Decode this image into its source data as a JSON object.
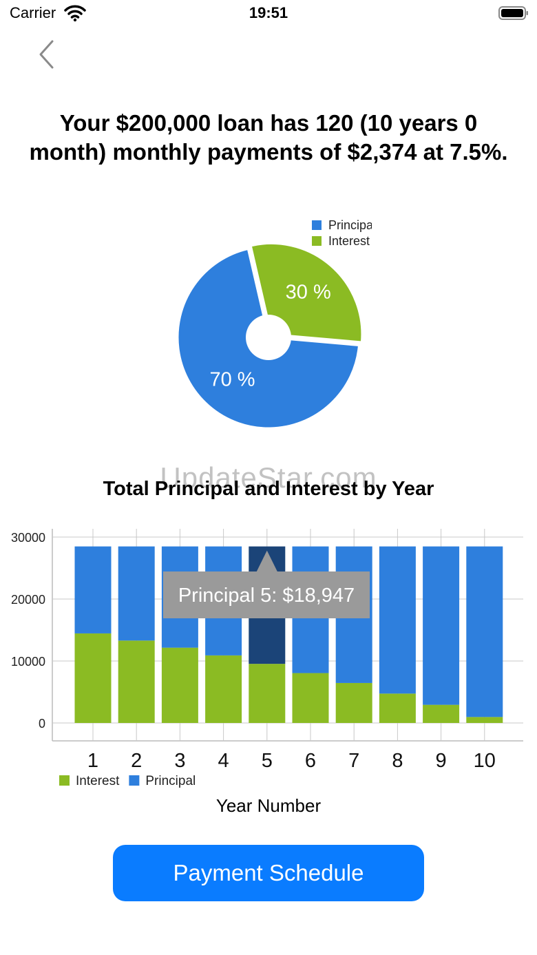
{
  "status_bar": {
    "carrier": "Carrier",
    "time": "19:51"
  },
  "headline": "Your $200,000 loan has 120 (10 years 0 month) monthly payments of $2,374 at 7.5%.",
  "watermark": "UpdateStar.com",
  "colors": {
    "principal": "#2e7fdd",
    "interest": "#8bbb23",
    "highlight": "#1b4478",
    "tooltip_bg": "#9a9a9a",
    "button": "#0a7cff"
  },
  "chart_data": [
    {
      "type": "pie",
      "title": "",
      "legend": [
        "Principal",
        "Interest"
      ],
      "legend_position": "top-right",
      "slices": [
        {
          "name": "Principal",
          "value": 70,
          "label": "70 %"
        },
        {
          "name": "Interest",
          "value": 30,
          "label": "30 %"
        }
      ],
      "donut": true
    },
    {
      "type": "bar",
      "stacked": true,
      "title": "Total Principal and Interest by Year",
      "xlabel": "Year Number",
      "ylabel": "",
      "categories": [
        "1",
        "2",
        "3",
        "4",
        "5",
        "6",
        "7",
        "8",
        "9",
        "10"
      ],
      "ylim": [
        0,
        30000
      ],
      "yticks": [
        "0",
        "10000",
        "20000",
        "30000"
      ],
      "grid": true,
      "legend_position": "bottom-left",
      "series": [
        {
          "name": "Interest",
          "values": [
            14450,
            13300,
            12150,
            10900,
            9540,
            8050,
            6450,
            4740,
            2930,
            960
          ]
        },
        {
          "name": "Principal",
          "values": [
            14038,
            15188,
            16338,
            17588,
            18947,
            20438,
            22038,
            23748,
            25558,
            27528
          ]
        }
      ],
      "highlight": {
        "category_index": 4,
        "series": "Principal"
      },
      "tooltip": "Principal 5: $18,947"
    }
  ],
  "buttons": {
    "payment_schedule": "Payment Schedule"
  }
}
